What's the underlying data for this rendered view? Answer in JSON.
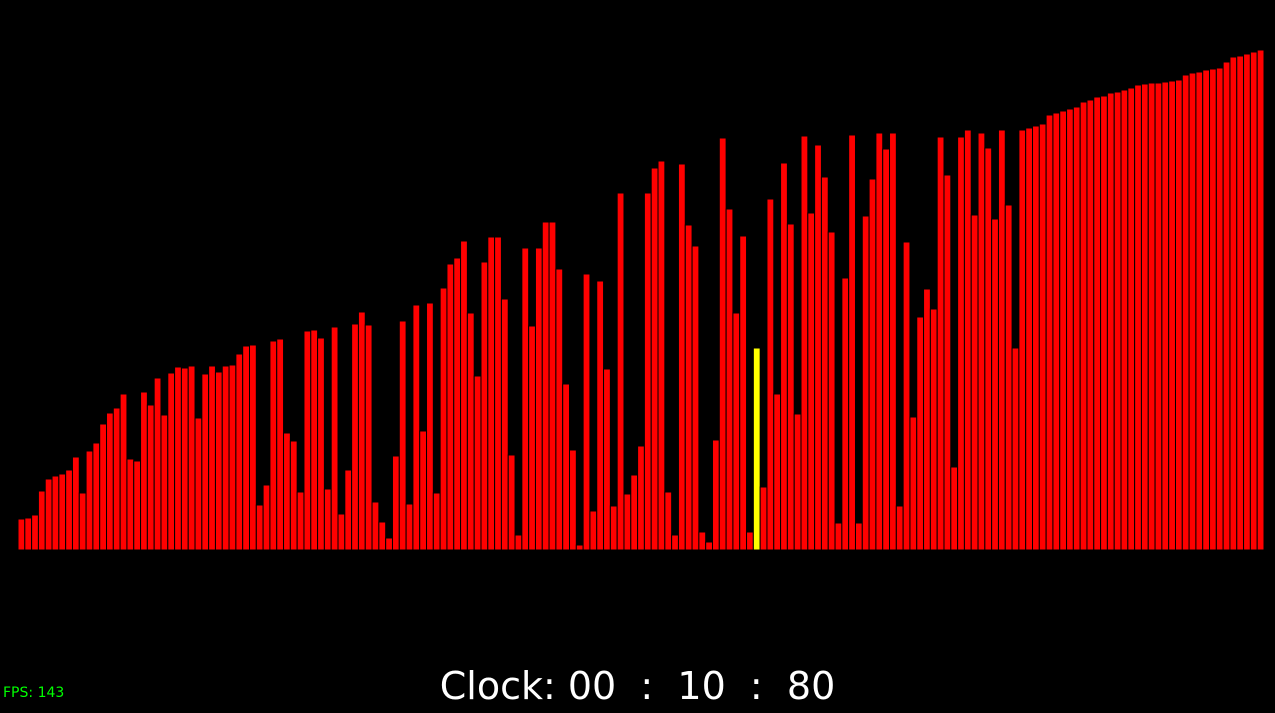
{
  "hud": {
    "clock_label": "Clock:",
    "clock_minutes": "00",
    "clock_seconds": "10",
    "clock_hundredths": "80",
    "clock_separator": ":",
    "fps_label": "FPS:",
    "fps_value": "143"
  },
  "colors": {
    "background": "#000000",
    "bar": "#ff0000",
    "bar_border": "#000000",
    "highlight": "#ffff00",
    "clock_text": "#ffffff",
    "fps_text": "#00ff00"
  },
  "visualizer": {
    "highlight_index": 108,
    "max_value": 500,
    "values": [
      31,
      32,
      35,
      59,
      71,
      74,
      76,
      80,
      93,
      57,
      99,
      107,
      126,
      137,
      142,
      156,
      91,
      89,
      158,
      145,
      172,
      135,
      177,
      183,
      182,
      184,
      132,
      176,
      184,
      178,
      184,
      185,
      196,
      204,
      205,
      45,
      65,
      209,
      211,
      117,
      109,
      58,
      219,
      220,
      212,
      61,
      223,
      36,
      80,
      226,
      238,
      225,
      48,
      28,
      12,
      94,
      229,
      46,
      245,
      119,
      247,
      57,
      262,
      286,
      292,
      309,
      237,
      174,
      288,
      313,
      313,
      251,
      95,
      15,
      302,
      224,
      302,
      328,
      328,
      281,
      166,
      100,
      5,
      276,
      39,
      269,
      181,
      44,
      357,
      56,
      75,
      104,
      357,
      382,
      389,
      58,
      15,
      386,
      325,
      304,
      18,
      8,
      110,
      412,
      341,
      237,
      314,
      18,
      202,
      63,
      351,
      156,
      387,
      326,
      136,
      414,
      337,
      405,
      373,
      318,
      27,
      272,
      415,
      27,
      334,
      371,
      417,
      401,
      417,
      44,
      308,
      133,
      233,
      261,
      241,
      413,
      375,
      83,
      413,
      420,
      335,
      417,
      402,
      331,
      420,
      345,
      202,
      420,
      422,
      424,
      426,
      435,
      437,
      439,
      441,
      443,
      448,
      450,
      453,
      454,
      457,
      458,
      460,
      462,
      465,
      466,
      467,
      467,
      468,
      469,
      470,
      475,
      477,
      478,
      480,
      481,
      482,
      488,
      493,
      494,
      496,
      498,
      500
    ]
  }
}
